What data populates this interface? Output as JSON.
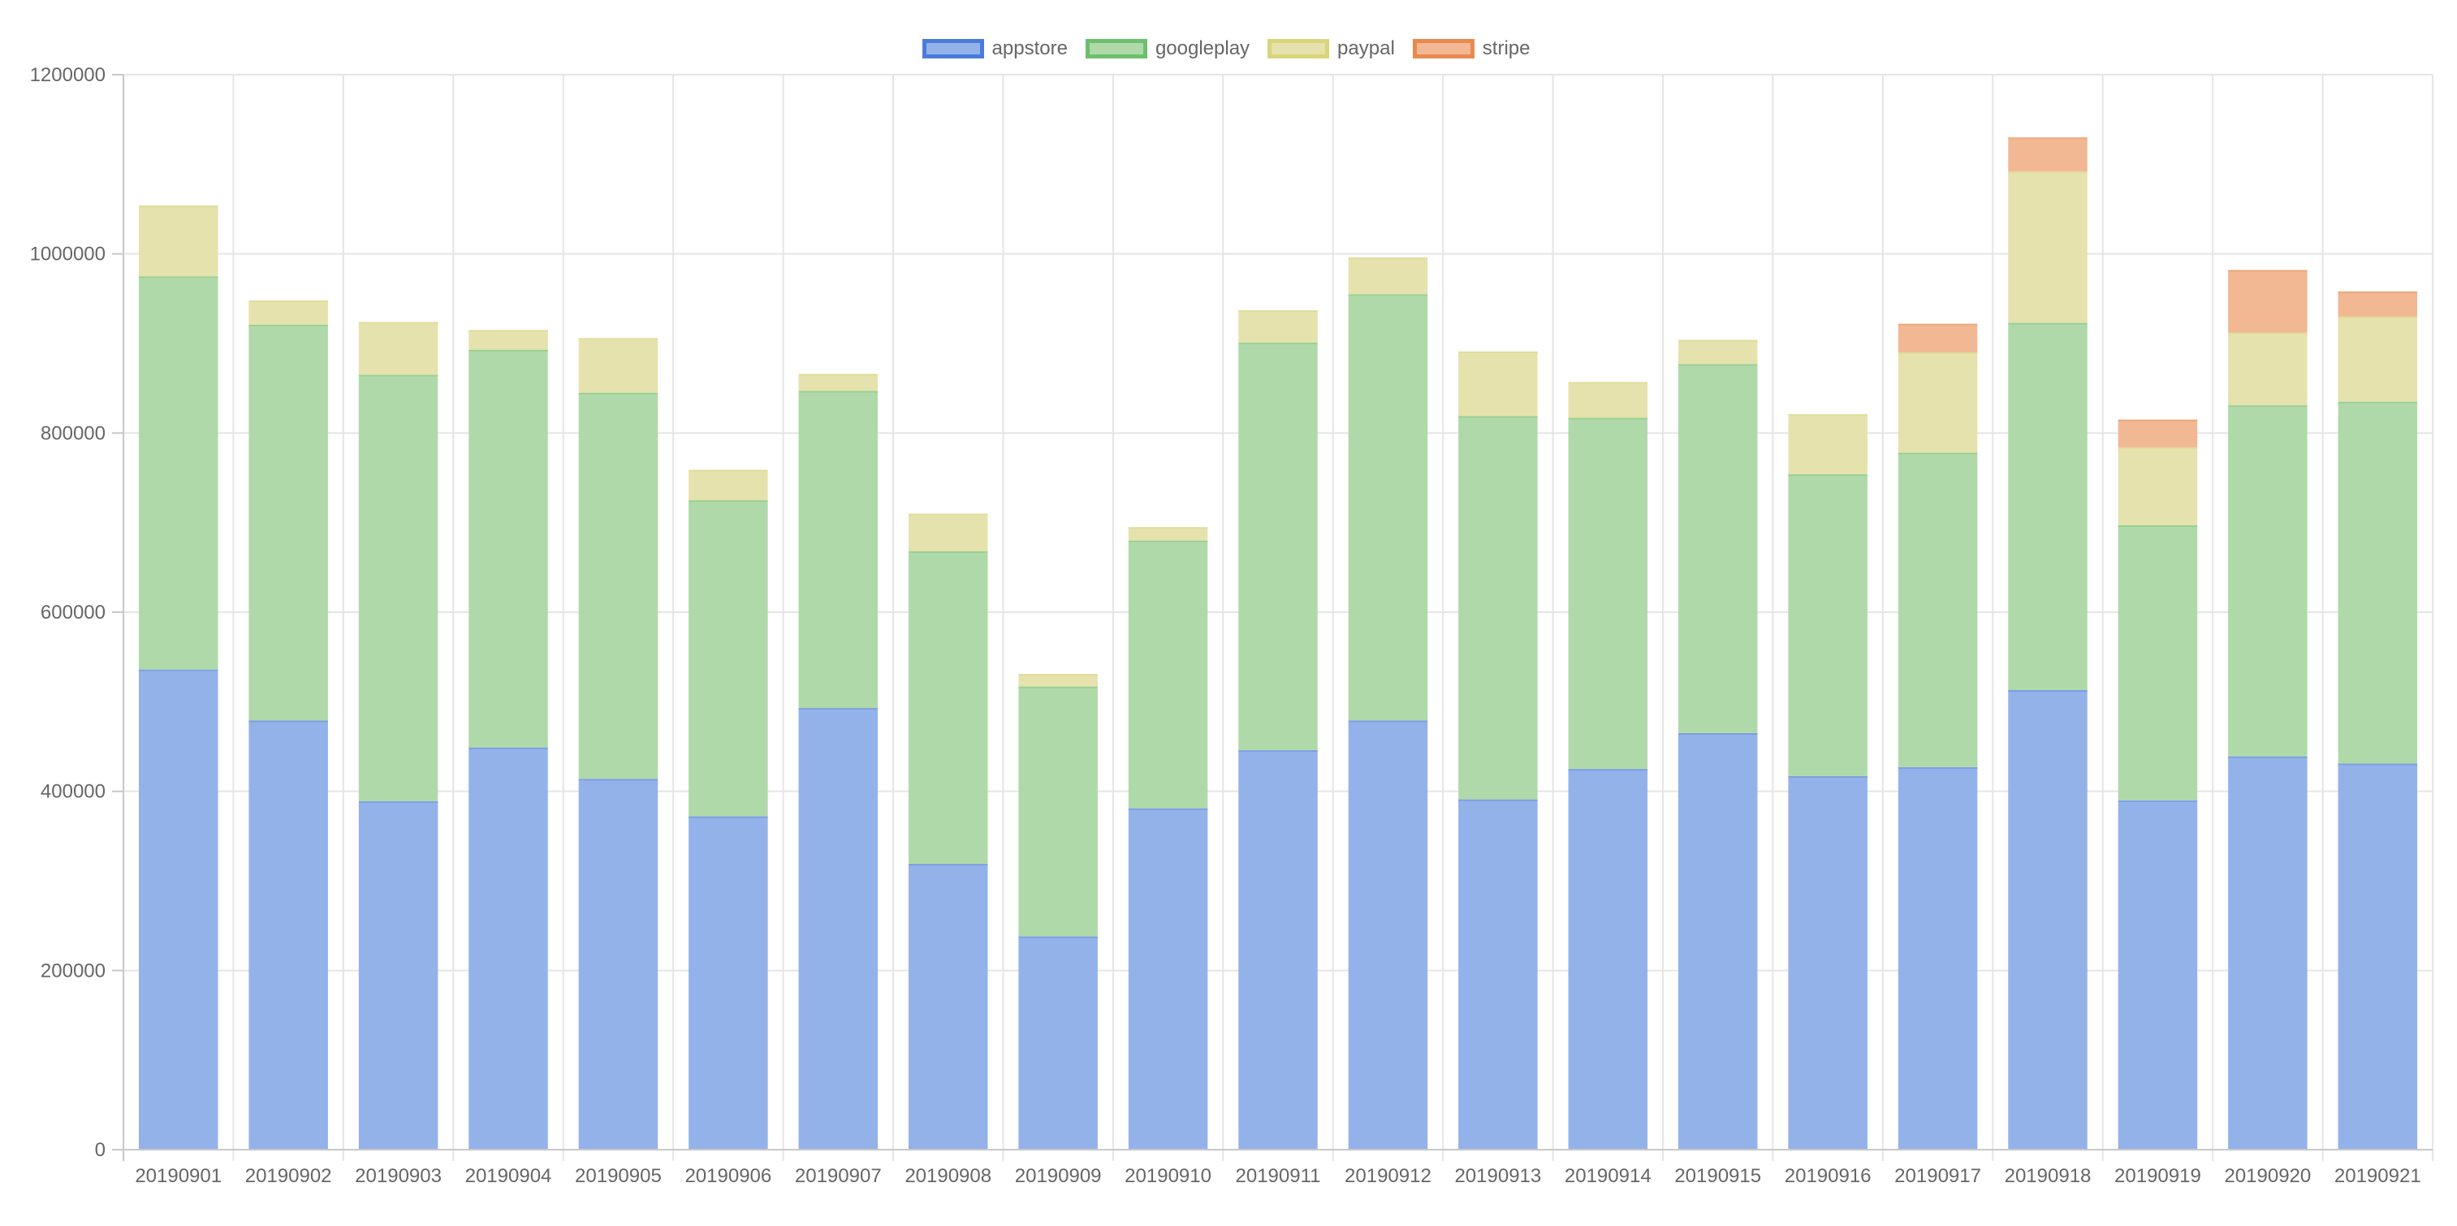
{
  "chart_data": {
    "type": "bar",
    "stacked": true,
    "title": "",
    "xlabel": "",
    "ylabel": "",
    "ylim": [
      0,
      1200000
    ],
    "y_ticks": [
      0,
      200000,
      400000,
      600000,
      800000,
      1000000,
      1200000
    ],
    "y_tick_labels": [
      "0",
      "200000",
      "400000",
      "600000",
      "800000",
      "1000000",
      "1200000"
    ],
    "grid": true,
    "legend_position": "top-center",
    "categories": [
      "20190901",
      "20190902",
      "20190903",
      "20190904",
      "20190905",
      "20190906",
      "20190907",
      "20190908",
      "20190909",
      "20190910",
      "20190911",
      "20190912",
      "20190913",
      "20190914",
      "20190915",
      "20190916",
      "20190917",
      "20190918",
      "20190919",
      "20190920",
      "20190921"
    ],
    "series": [
      {
        "name": "appstore",
        "color": "#4A7BDB",
        "fill": "#94B2EA",
        "values": [
          536000,
          479000,
          389000,
          449000,
          414000,
          372000,
          493000,
          319000,
          238000,
          381000,
          446000,
          479000,
          391000,
          425000,
          465000,
          417000,
          427000,
          513000,
          390000,
          439000,
          431000
        ]
      },
      {
        "name": "googleplay",
        "color": "#6CC06C",
        "fill": "#B0D9A9",
        "values": [
          439000,
          442000,
          476000,
          444000,
          431000,
          353000,
          354000,
          349000,
          279000,
          299000,
          455000,
          476000,
          428000,
          392000,
          412000,
          337000,
          351000,
          410000,
          307000,
          392000,
          404000
        ]
      },
      {
        "name": "paypal",
        "color": "#D9D57A",
        "fill": "#E5E2AD",
        "values": [
          79000,
          27000,
          59000,
          22000,
          61000,
          34000,
          19000,
          42000,
          14000,
          15000,
          36000,
          41000,
          72000,
          40000,
          27000,
          67000,
          112000,
          169000,
          87000,
          81000,
          95000
        ]
      },
      {
        "name": "stripe",
        "color": "#E98A50",
        "fill": "#F1B893",
        "values": [
          0,
          0,
          0,
          0,
          0,
          0,
          0,
          0,
          0,
          0,
          0,
          0,
          0,
          0,
          0,
          0,
          32000,
          38000,
          31000,
          70000,
          28000
        ]
      }
    ]
  }
}
